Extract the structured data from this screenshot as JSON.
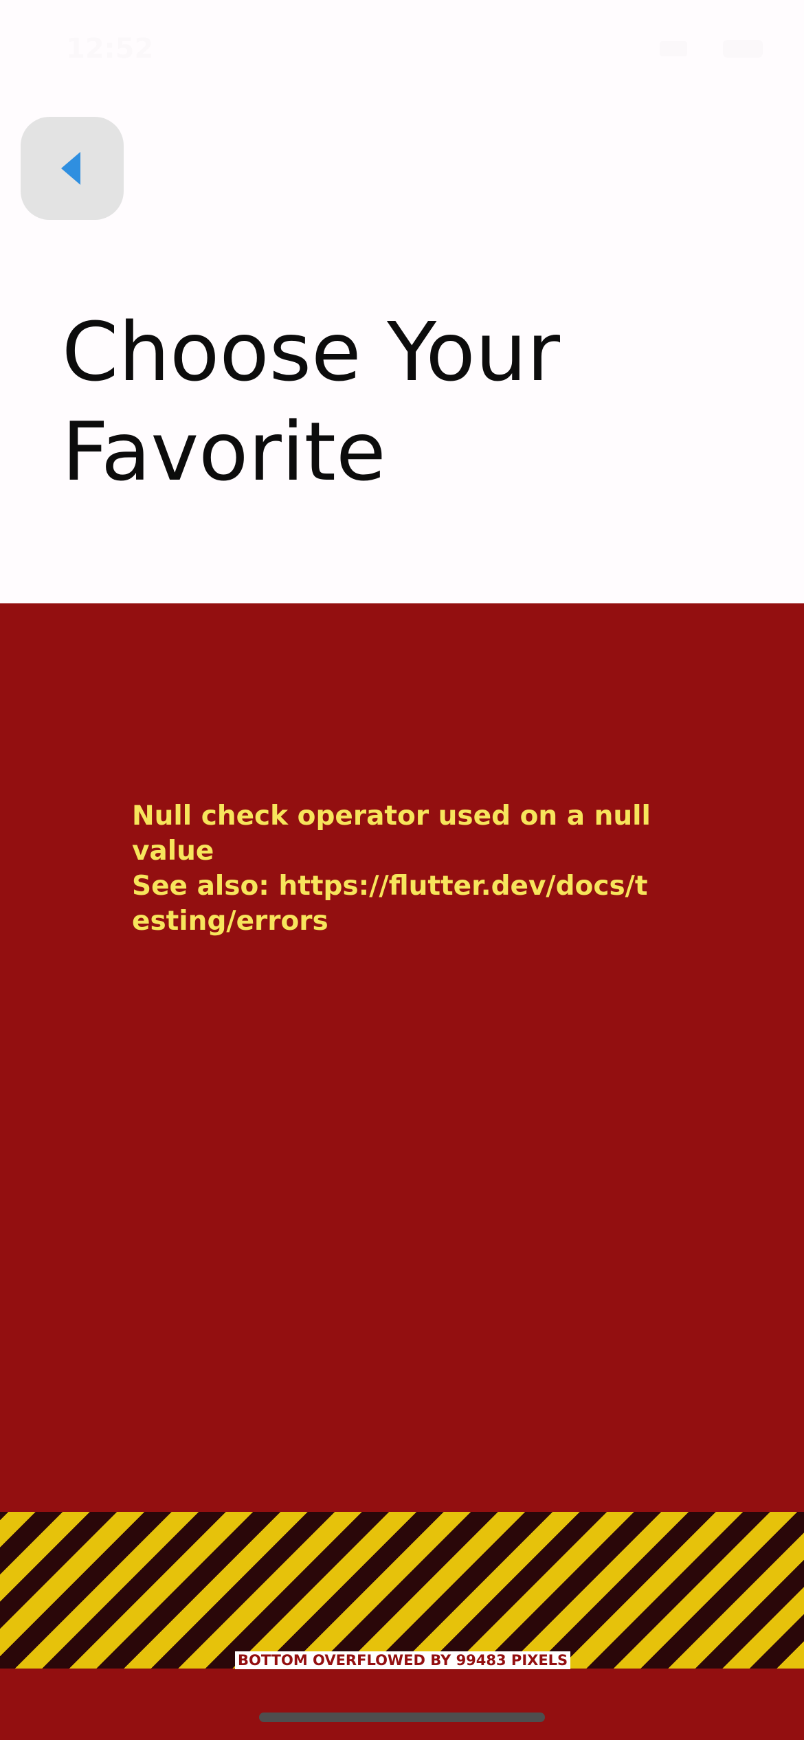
{
  "status_bar": {
    "time": "12:52"
  },
  "header": {
    "back_icon": "chevron-left-icon",
    "back_icon_color": "#2f8fe0",
    "title_line1": "Choose Your",
    "title_line2": "Favorite"
  },
  "error": {
    "message": "Null check operator used on a null value\nSee also: https://flutter.dev/docs/testing/errors",
    "panel_color": "#930f10",
    "text_color": "#f7e55c"
  },
  "overflow": {
    "label": "BOTTOM OVERFLOWED BY 99483 PIXELS",
    "stripe_colors": [
      "#e6c20b",
      "#2a0709"
    ]
  }
}
